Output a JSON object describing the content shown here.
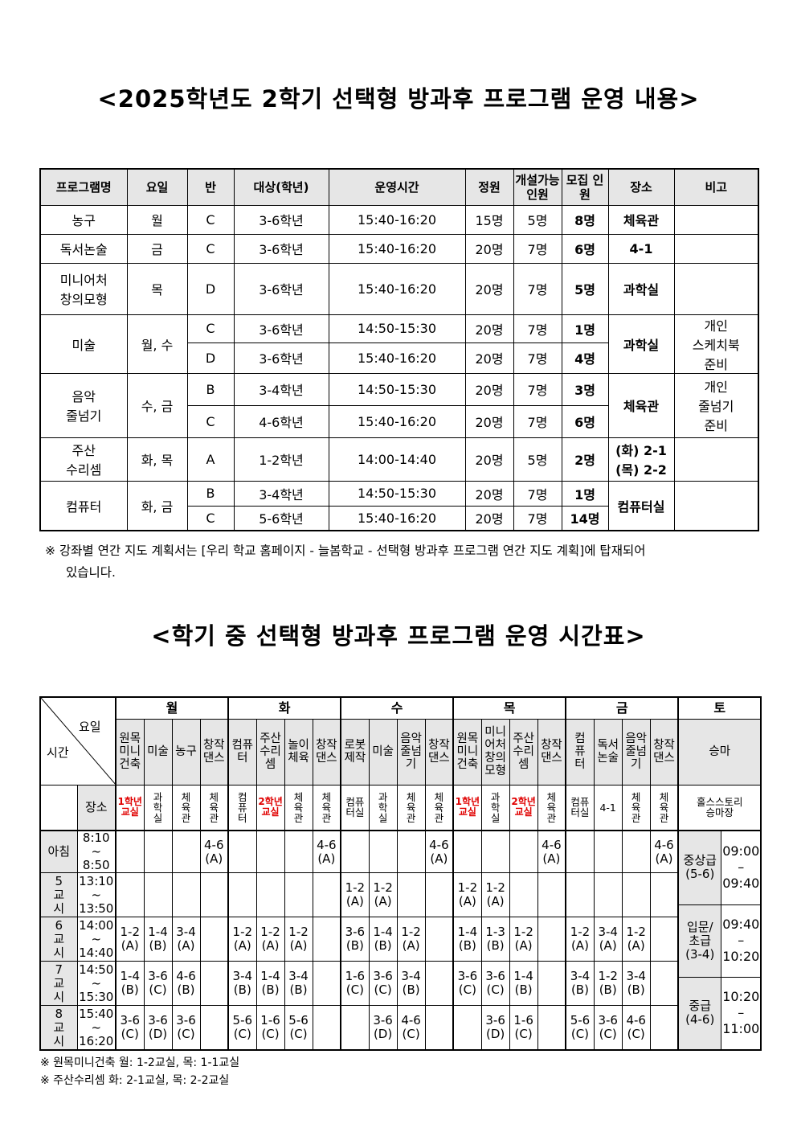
{
  "title1": "<2025학년도 2학기 선택형 방과후 프로그램 운영 내용>",
  "table1": {
    "headers": [
      "프로그램명",
      "요일",
      "반",
      "대상(학년)",
      "운영시간",
      "정원",
      "개설가능\n인원",
      "모집\n인원",
      "장소",
      "비고"
    ],
    "programs": [
      {
        "name": "농구",
        "days": "월",
        "place": "체육관",
        "note": "",
        "classes": [
          {
            "class": "C",
            "target": "3-6학년",
            "time": "15:40-16:20",
            "capacity": "15명",
            "min": "5명",
            "enrolled": "8명"
          }
        ]
      },
      {
        "name": "독서논술",
        "days": "금",
        "place": "4-1",
        "note": "",
        "classes": [
          {
            "class": "C",
            "target": "3-6학년",
            "time": "15:40-16:20",
            "capacity": "20명",
            "min": "7명",
            "enrolled": "6명"
          }
        ]
      },
      {
        "name": "미니어처\n창의모형",
        "days": "목",
        "place": "과학실",
        "note": "",
        "classes": [
          {
            "class": "D",
            "target": "3-6학년",
            "time": "15:40-16:20",
            "capacity": "20명",
            "min": "7명",
            "enrolled": "5명"
          }
        ]
      },
      {
        "name": "미술",
        "days": "월, 수",
        "place": "과학실",
        "note": "개인\n스케치북\n준비",
        "classes": [
          {
            "class": "C",
            "target": "3-6학년",
            "time": "14:50-15:30",
            "capacity": "20명",
            "min": "7명",
            "enrolled": "1명"
          },
          {
            "class": "D",
            "target": "3-6학년",
            "time": "15:40-16:20",
            "capacity": "20명",
            "min": "7명",
            "enrolled": "4명"
          }
        ]
      },
      {
        "name": "음악\n줄넘기",
        "days": "수, 금",
        "place": "체육관",
        "note": "개인\n줄넘기\n준비",
        "classes": [
          {
            "class": "B",
            "target": "3-4학년",
            "time": "14:50-15:30",
            "capacity": "20명",
            "min": "7명",
            "enrolled": "3명"
          },
          {
            "class": "C",
            "target": "4-6학년",
            "time": "15:40-16:20",
            "capacity": "20명",
            "min": "7명",
            "enrolled": "6명"
          }
        ]
      },
      {
        "name": "주산\n수리셈",
        "days": "화, 목",
        "place": "(화) 2-1\n(목) 2-2",
        "note": "",
        "classes": [
          {
            "class": "A",
            "target": "1-2학년",
            "time": "14:00-14:40",
            "capacity": "20명",
            "min": "5명",
            "enrolled": "2명"
          }
        ]
      },
      {
        "name": "컴퓨터",
        "days": "화, 금",
        "place": "컴퓨터실",
        "note": "",
        "classes": [
          {
            "class": "B",
            "target": "3-4학년",
            "time": "14:50-15:30",
            "capacity": "20명",
            "min": "7명",
            "enrolled": "1명"
          },
          {
            "class": "C",
            "target": "5-6학년",
            "time": "15:40-16:20",
            "capacity": "20명",
            "min": "7명",
            "enrolled": "14명"
          }
        ]
      }
    ]
  },
  "note1": {
    "line1": "※  강좌별 연간 지도 계획서는 [우리 학교 홈페이지 - 늘봄학교 - 선택형 방과후 프로그램 연간 지도 계획]에 탑재되어",
    "line2": "있습니다."
  },
  "title2": "<학기 중 선택형 방과후 프로그램 운영 시간표>",
  "table2": {
    "corner_day": "요일",
    "corner_time": "시간",
    "place_label": "장소",
    "accent_red": "#e00000",
    "days": [
      {
        "day": "월",
        "programs": [
          {
            "name": "원목\n미니\n건축",
            "place": "1학년\n교실",
            "red": true
          },
          {
            "name": "미술",
            "place": "과\n학\n실"
          },
          {
            "name": "농구",
            "place": "체\n육\n관"
          },
          {
            "name": "창작\n댄스",
            "place": "체\n육\n관"
          }
        ]
      },
      {
        "day": "화",
        "programs": [
          {
            "name": "컴퓨\n터",
            "place": "컴\n퓨\n터"
          },
          {
            "name": "주산\n수리\n셈",
            "place": "2학년\n교실",
            "red": true
          },
          {
            "name": "놀이\n체육",
            "place": "체\n육\n관"
          },
          {
            "name": "창작\n댄스",
            "place": "체\n육\n관"
          }
        ]
      },
      {
        "day": "수",
        "programs": [
          {
            "name": "로봇\n제작",
            "place": "컴퓨\n터실"
          },
          {
            "name": "미술",
            "place": "과\n학\n실"
          },
          {
            "name": "음악\n줄넘\n기",
            "place": "체\n육\n관"
          },
          {
            "name": "창작\n댄스",
            "place": "체\n육\n관"
          }
        ]
      },
      {
        "day": "목",
        "programs": [
          {
            "name": "원목\n미니\n건축",
            "place": "1학년\n교실",
            "red": true
          },
          {
            "name": "미니\n어처\n창의\n모형",
            "place": "과\n학\n실"
          },
          {
            "name": "주산\n수리\n셈",
            "place": "2학년\n교실",
            "red": true
          },
          {
            "name": "창작\n댄스",
            "place": "체\n육\n관"
          }
        ]
      },
      {
        "day": "금",
        "programs": [
          {
            "name": "컴\n퓨\n터",
            "place": "컴퓨\n터실"
          },
          {
            "name": "독서\n논술",
            "place": "4-1"
          },
          {
            "name": "음악\n줄넘\n기",
            "place": "체\n육\n관"
          },
          {
            "name": "창작\n댄스",
            "place": "체\n육\n관"
          }
        ]
      }
    ],
    "saturday": {
      "day": "토",
      "program": "승마",
      "place": "홀스스토리\n승마장",
      "levels": [
        {
          "level": "중상급\n(5-6)",
          "time": "09:00\n–\n09:40"
        },
        {
          "level": "입문/\n초급\n(3-4)",
          "time": "09:40\n–\n10:20"
        },
        {
          "level": "중급\n(4-6)",
          "time": "10:20\n–\n11:00"
        }
      ]
    },
    "periods": [
      {
        "label": "아침",
        "time": "8:10\n~\n8:50",
        "cells": [
          "",
          "",
          "",
          "4-6\n(A)",
          "",
          "",
          "",
          "4-6\n(A)",
          "",
          "",
          "",
          "4-6\n(A)",
          "",
          "",
          "",
          "4-6\n(A)",
          "",
          "",
          "",
          "4-6\n(A)"
        ]
      },
      {
        "label": "5\n교\n시",
        "time": "13:10\n~\n13:50",
        "cells": [
          "",
          "",
          "",
          "",
          "",
          "",
          "",
          "",
          "1-2\n(A)",
          "1-2\n(A)",
          "",
          "",
          "1-2\n(A)",
          "1-2\n(A)",
          "",
          "",
          "",
          "",
          "",
          ""
        ]
      },
      {
        "label": "6\n교\n시",
        "time": "14:00\n~\n14:40",
        "cells": [
          "1-2\n(A)",
          "1-4\n(B)",
          "3-4\n(A)",
          "",
          "1-2\n(A)",
          "1-2\n(A)",
          "1-2\n(A)",
          "",
          "3-6\n(B)",
          "1-4\n(B)",
          "1-2\n(A)",
          "",
          "1-4\n(B)",
          "1-3\n(B)",
          "1-2\n(A)",
          "",
          "1-2\n(A)",
          "3-4\n(A)",
          "1-2\n(A)",
          ""
        ]
      },
      {
        "label": "7\n교\n시",
        "time": "14:50\n~\n15:30",
        "cells": [
          "1-4\n(B)",
          "3-6\n(C)",
          "4-6\n(B)",
          "",
          "3-4\n(B)",
          "1-4\n(B)",
          "3-4\n(B)",
          "",
          "1-6\n(C)",
          "3-6\n(C)",
          "3-4\n(B)",
          "",
          "3-6\n(C)",
          "3-6\n(C)",
          "1-4\n(B)",
          "",
          "3-4\n(B)",
          "1-2\n(B)",
          "3-4\n(B)",
          ""
        ]
      },
      {
        "label": "8\n교\n시",
        "time": "15:40\n~\n16:20",
        "cells": [
          "3-6\n(C)",
          "3-6\n(D)",
          "3-6\n(C)",
          "",
          "5-6\n(C)",
          "1-6\n(C)",
          "5-6\n(C)",
          "",
          "",
          "3-6\n(D)",
          "4-6\n(C)",
          "",
          "",
          "3-6\n(D)",
          "1-6\n(C)",
          "",
          "5-6\n(C)",
          "3-6\n(C)",
          "4-6\n(C)",
          ""
        ]
      }
    ]
  },
  "notes2": [
    "※ 원목미니건축 월: 1-2교실, 목: 1-1교실",
    "※ 주산수리셈 화: 2-1교실, 목: 2-2교실"
  ]
}
